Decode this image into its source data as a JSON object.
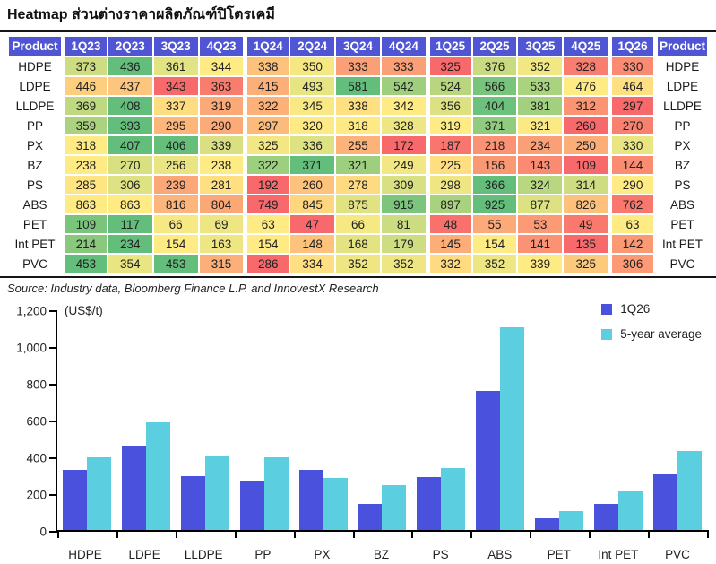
{
  "title": "Heatmap ส่วนต่างราคาผลิตภัณฑ์ปิโตรเคมี",
  "source": "Source: Industry data, Bloomberg Finance L.P. and InnovestX Research",
  "colors": {
    "header_bg": "#4f55d3",
    "heat_low": "#F8696B",
    "heat_mid": "#FFEB84",
    "heat_high": "#63BE7B",
    "axis": "#000000"
  },
  "table": {
    "product_header": "Product",
    "quarters": [
      "1Q23",
      "2Q23",
      "3Q23",
      "4Q23",
      "1Q24",
      "2Q24",
      "3Q24",
      "4Q24",
      "1Q25",
      "2Q25",
      "3Q25",
      "4Q25",
      "1Q26"
    ],
    "year_group_starts": [
      0,
      4,
      8,
      12
    ],
    "rows": [
      {
        "product": "HDPE",
        "values": [
          373,
          436,
          361,
          344,
          338,
          350,
          333,
          333,
          325,
          376,
          352,
          328,
          330
        ]
      },
      {
        "product": "LDPE",
        "values": [
          446,
          437,
          343,
          363,
          415,
          493,
          581,
          542,
          524,
          566,
          533,
          476,
          464
        ]
      },
      {
        "product": "LLDPE",
        "values": [
          369,
          408,
          337,
          319,
          322,
          345,
          338,
          342,
          356,
          404,
          381,
          312,
          297
        ]
      },
      {
        "product": "PP",
        "values": [
          359,
          393,
          295,
          290,
          297,
          320,
          318,
          328,
          319,
          371,
          321,
          260,
          270
        ]
      },
      {
        "product": "PX",
        "values": [
          318,
          407,
          406,
          339,
          325,
          336,
          255,
          172,
          187,
          218,
          234,
          250,
          330
        ]
      },
      {
        "product": "BZ",
        "values": [
          238,
          270,
          256,
          238,
          322,
          371,
          321,
          249,
          225,
          156,
          143,
          109,
          144
        ]
      },
      {
        "product": "PS",
        "values": [
          285,
          306,
          239,
          281,
          192,
          260,
          278,
          309,
          298,
          366,
          324,
          314,
          290
        ]
      },
      {
        "product": "ABS",
        "values": [
          863,
          863,
          816,
          804,
          749,
          845,
          875,
          915,
          897,
          925,
          877,
          826,
          762
        ]
      },
      {
        "product": "PET",
        "values": [
          109,
          117,
          66,
          69,
          63,
          47,
          66,
          81,
          48,
          55,
          53,
          49,
          63
        ]
      },
      {
        "product": "Int PET",
        "values": [
          214,
          234,
          154,
          163,
          154,
          148,
          168,
          179,
          145,
          154,
          141,
          135,
          142
        ]
      },
      {
        "product": "PVC",
        "values": [
          453,
          354,
          453,
          315,
          286,
          334,
          352,
          352,
          332,
          352,
          339,
          325,
          306
        ]
      }
    ]
  },
  "chart_data": {
    "type": "bar",
    "title": "",
    "ylabel": "(US$/t)",
    "xlabel": "",
    "ylim": [
      0,
      1200
    ],
    "grid": false,
    "legend_position": "top-right",
    "yticks": [
      {
        "value": 0,
        "label": "0"
      },
      {
        "value": 200,
        "label": "200"
      },
      {
        "value": 400,
        "label": "400"
      },
      {
        "value": 600,
        "label": "600"
      },
      {
        "value": 800,
        "label": "800"
      },
      {
        "value": 1000,
        "label": "1,000"
      },
      {
        "value": 1200,
        "label": "1,200"
      }
    ],
    "categories": [
      "HDPE",
      "LDPE",
      "LLDPE",
      "PP",
      "PX",
      "BZ",
      "PS",
      "ABS",
      "PET",
      "Int PET",
      "PVC"
    ],
    "series": [
      {
        "name": "1Q26",
        "color": "#4a51dc",
        "values": [
          330,
          464,
          297,
          270,
          330,
          144,
          290,
          762,
          63,
          142,
          306
        ]
      },
      {
        "name": "5-year average",
        "color": "#5bcfdf",
        "values": [
          400,
          590,
          410,
          400,
          285,
          245,
          340,
          1110,
          105,
          210,
          435
        ]
      }
    ]
  }
}
